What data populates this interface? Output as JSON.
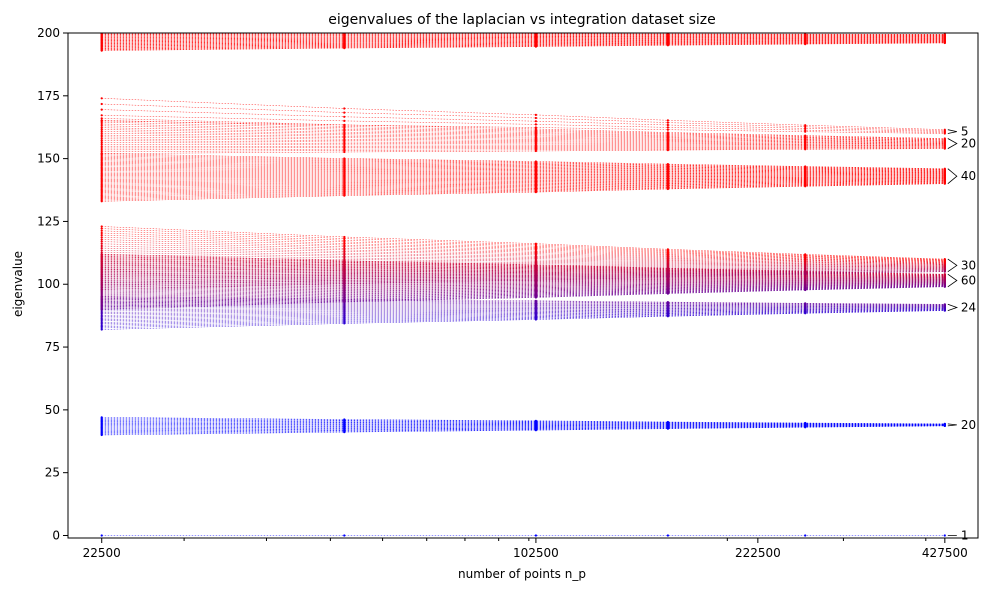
{
  "chart_data": {
    "type": "line",
    "title": "eigenvalues of the laplacian vs integration dataset size",
    "xlabel": "number of points n_p",
    "ylabel": "eigenvalue",
    "x_scale": "log",
    "x": [
      22500,
      52500,
      102500,
      162500,
      262500,
      427500
    ],
    "x_ticks": [
      22500,
      102500,
      222500,
      427500
    ],
    "x_tick_labels": [
      "22500",
      "102500",
      "222500",
      "427500"
    ],
    "xlim": [
      20000,
      480000
    ],
    "ylim": [
      -1,
      200
    ],
    "y_ticks": [
      0,
      25,
      50,
      75,
      100,
      125,
      150,
      175,
      200
    ],
    "y_tick_labels": [
      "0",
      "25",
      "50",
      "75",
      "100",
      "125",
      "150",
      "175",
      "200"
    ],
    "grid": false,
    "color_low": "#0000ff",
    "color_high": "#ff0000",
    "groups": [
      {
        "count": 1,
        "label": "1",
        "start": [
          0,
          0
        ],
        "end": [
          0,
          0
        ]
      },
      {
        "count": 20,
        "label": "20",
        "start": [
          40,
          47
        ],
        "end": [
          43.6,
          44.4
        ]
      },
      {
        "count": 24,
        "label": "24",
        "start": [
          82,
          95
        ],
        "end": [
          89.5,
          92
        ]
      },
      {
        "count": 60,
        "label": "60",
        "start": [
          90,
          112
        ],
        "end": [
          99,
          104
        ]
      },
      {
        "count": 30,
        "label": "30",
        "start": [
          98,
          123
        ],
        "end": [
          105,
          110
        ]
      },
      {
        "count": 40,
        "label": "40",
        "start": [
          133,
          152
        ],
        "end": [
          140,
          146
        ]
      },
      {
        "count": 20,
        "label": "20",
        "start": [
          152,
          166
        ],
        "end": [
          154,
          158
        ]
      },
      {
        "count": 5,
        "label": "5",
        "start": [
          165,
          174
        ],
        "end": [
          160,
          161.5
        ]
      },
      {
        "count": 30,
        "label": "",
        "start": [
          193,
          200
        ],
        "end": [
          196,
          199.5
        ]
      }
    ]
  }
}
